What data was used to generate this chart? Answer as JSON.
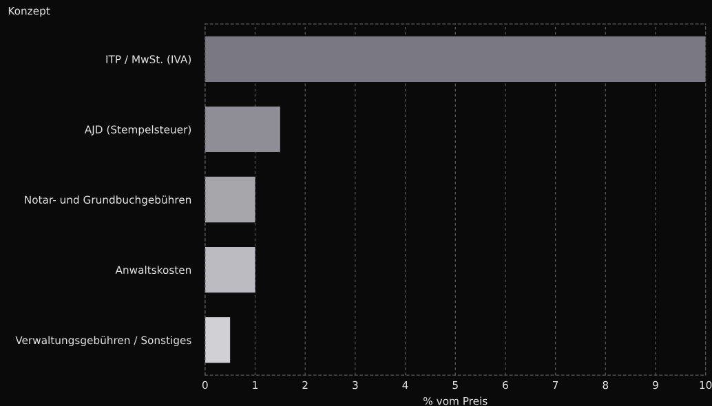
{
  "chart_data": {
    "type": "bar",
    "orientation": "horizontal",
    "ylabel": "Konzept",
    "xlabel": "% vom Preis",
    "categories": [
      "ITP / MwSt. (IVA)",
      "AJD (Stempelsteuer)",
      "Notar- und Grundbuchgebühren",
      "Anwaltskosten",
      "Verwaltungsgebühren / Sonstiges"
    ],
    "values": [
      10,
      1.5,
      1,
      1,
      0.5
    ],
    "colors": [
      "#7a7983",
      "#8f8e97",
      "#a6a6ab",
      "#bcbbc1",
      "#d1d0d5"
    ],
    "xlim": [
      0,
      10
    ],
    "xticks": [
      0,
      1,
      2,
      3,
      4,
      5,
      6,
      7,
      8,
      9,
      10
    ],
    "grid": "x"
  }
}
